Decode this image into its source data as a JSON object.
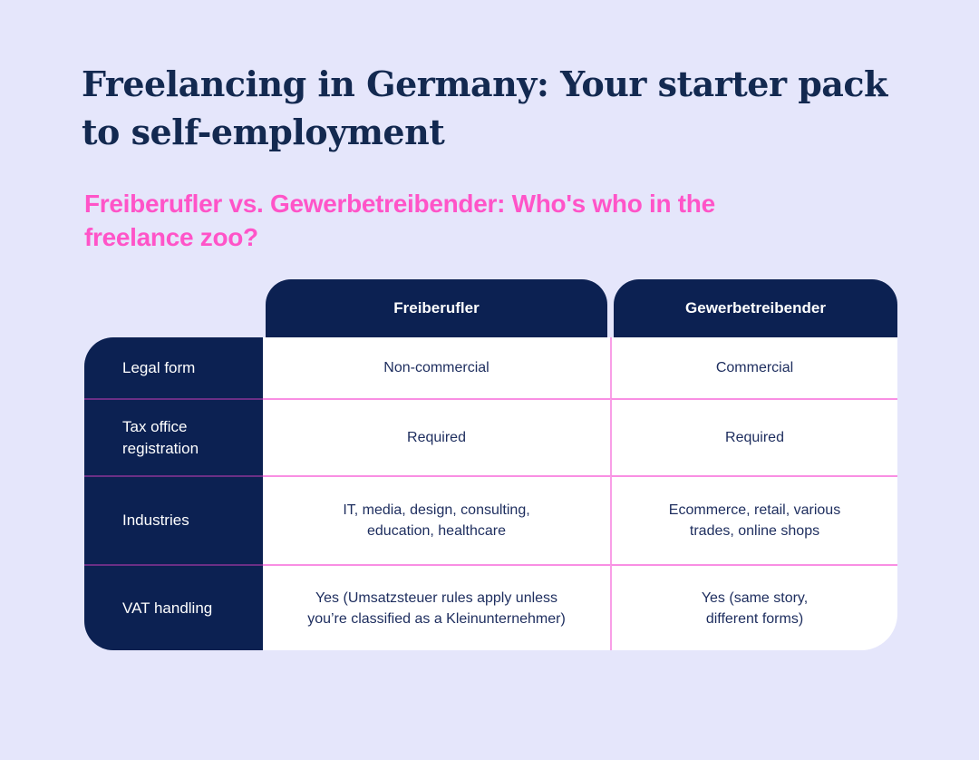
{
  "page": {
    "title": "Freelancing in Germany: Your starter pack to self-employment",
    "subtitle": "Freiberufler vs. Gewerbetreibender: Who's who in the freelance zoo?"
  },
  "colors": {
    "background": "#e5e6fb",
    "navy": "#0c2152",
    "title_text": "#132950",
    "heading_pink": "#ff54c8",
    "divider_pink": "#f98fe3",
    "divider_purple_on_navy": "#6b2f85",
    "cell_text": "#1d2d5e",
    "cell_background": "#ffffff"
  },
  "table": {
    "column_headers": [
      "Freiberufler",
      "Gewerbetreibender"
    ],
    "rows": [
      {
        "label": "Legal form",
        "freiberufler": "Non-commercial",
        "gewerbetreibender": "Commercial"
      },
      {
        "label": "Tax office\nregistration",
        "freiberufler": "Required",
        "gewerbetreibender": "Required"
      },
      {
        "label": "Industries",
        "freiberufler": "IT, media, design, consulting,\neducation, healthcare",
        "gewerbetreibender": "Ecommerce, retail, various\ntrades, online shops"
      },
      {
        "label": "VAT handling",
        "freiberufler": "Yes (Umsatzsteuer rules apply unless\nyou’re classified as a Kleinunternehmer)",
        "gewerbetreibender": "Yes (same story,\ndifferent forms)"
      }
    ]
  }
}
